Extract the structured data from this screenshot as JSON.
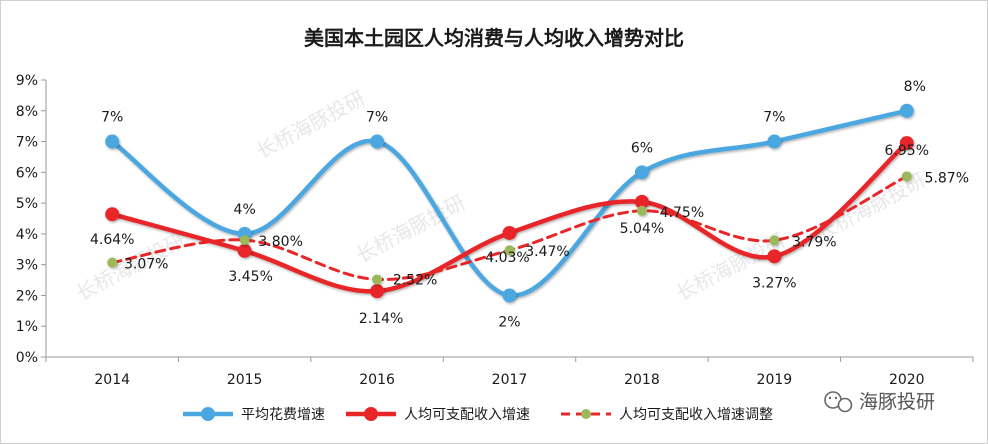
{
  "chart_data": {
    "type": "line",
    "title": "美国本土园区人均消费与人均收入增势对比",
    "categories": [
      "2014",
      "2015",
      "2016",
      "2017",
      "2018",
      "2019",
      "2020"
    ],
    "y_tick_labels": [
      "0%",
      "1%",
      "2%",
      "3%",
      "4%",
      "5%",
      "6%",
      "7%",
      "8%",
      "9%"
    ],
    "ylim": [
      0,
      9
    ],
    "grid": false,
    "legend_position": "bottom",
    "series": [
      {
        "name": "平均花费增速",
        "color": "#4ba7e0",
        "style": "smooth-line-markers",
        "values": [
          7,
          4,
          7,
          2,
          6,
          7,
          8
        ],
        "labels": [
          "7%",
          "4%",
          "7%",
          "2%",
          "6%",
          "7%",
          "8%"
        ]
      },
      {
        "name": "人均可支配收入增速",
        "color": "#e8262a",
        "style": "smooth-line-markers",
        "values": [
          4.64,
          3.45,
          2.14,
          4.03,
          5.04,
          3.27,
          6.95
        ],
        "labels": [
          "4.64%",
          "3.45%",
          "2.14%",
          "4.03%",
          "5.04%",
          "3.27%",
          "6.95%"
        ]
      },
      {
        "name": "人均可支配收入增速调整",
        "color": "#e8262a",
        "marker_color": "#9bb85a",
        "style": "dashed-smooth-markers",
        "values": [
          3.07,
          3.8,
          2.52,
          3.47,
          4.75,
          3.79,
          5.87
        ],
        "labels": [
          "3.07%",
          "3.80%",
          "2.52%",
          "3.47%",
          "4.75%",
          "3.79%",
          "5.87%"
        ]
      }
    ]
  },
  "watermark": "长桥海豚投研",
  "brand": {
    "icon": "wechat-icon",
    "name": "海豚投研"
  }
}
